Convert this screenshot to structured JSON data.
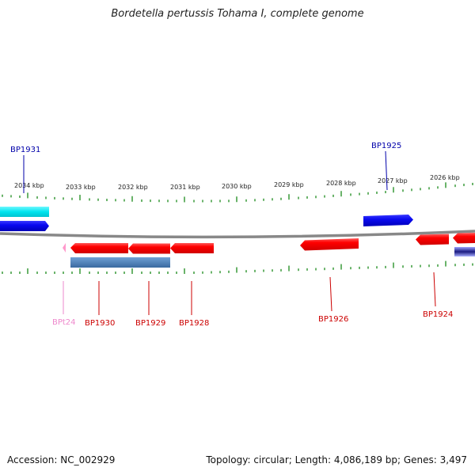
{
  "title": "Bordetella pertussis Tohama I, complete genome",
  "footer": {
    "accession": "Accession: NC_002929",
    "stats": "Topology: circular; Length: 4,086,189 bp; Genes: 3,497"
  },
  "kbp_ticks": [
    "2034 kbp",
    "2033 kbp",
    "2032 kbp",
    "2031 kbp",
    "2030 kbp",
    "2029 kbp",
    "2028 kbp",
    "2027 kbp",
    "2026 kbp"
  ],
  "gene_labels": {
    "bp1931": "BP1931",
    "bp1925": "BP1925",
    "bpt24": "BPt24",
    "bp1930": "BP1930",
    "bp1929": "BP1929",
    "bp1928": "BP1928",
    "bp1926": "BP1926",
    "bp1924": "BP1924"
  },
  "colors": {
    "backbone": "#808080",
    "tick": "#1a8a1a",
    "forward_gene": "#1010e0",
    "reverse_gene": "#ee0000",
    "trna": "#ff88cc",
    "operon": "#4a80b8",
    "cyan_feature": "#00e0e8",
    "navy_label": "#0000aa",
    "red_label": "#cc0000",
    "pink_label": "#ee88cc"
  }
}
